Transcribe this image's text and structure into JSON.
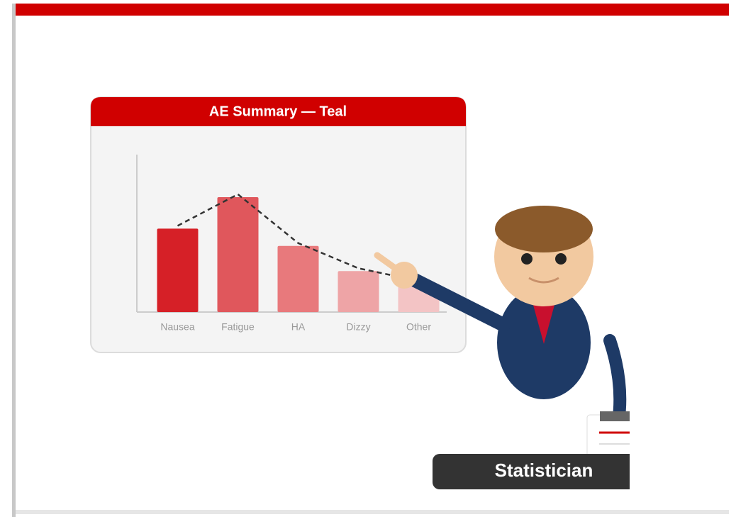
{
  "chart_data": {
    "type": "bar",
    "title": "AE Summary — Teal",
    "categories": [
      "Nausea",
      "Fatigue",
      "HA",
      "Dizzy",
      "Other"
    ],
    "values": [
      53,
      73,
      42,
      26,
      18
    ],
    "colors": [
      "#d62027",
      "#e0575c",
      "#e8797c",
      "#eea4a6",
      "#f3c4c5"
    ],
    "ylim": [
      0,
      100
    ],
    "trend_line": true
  },
  "caption": "Statistician"
}
